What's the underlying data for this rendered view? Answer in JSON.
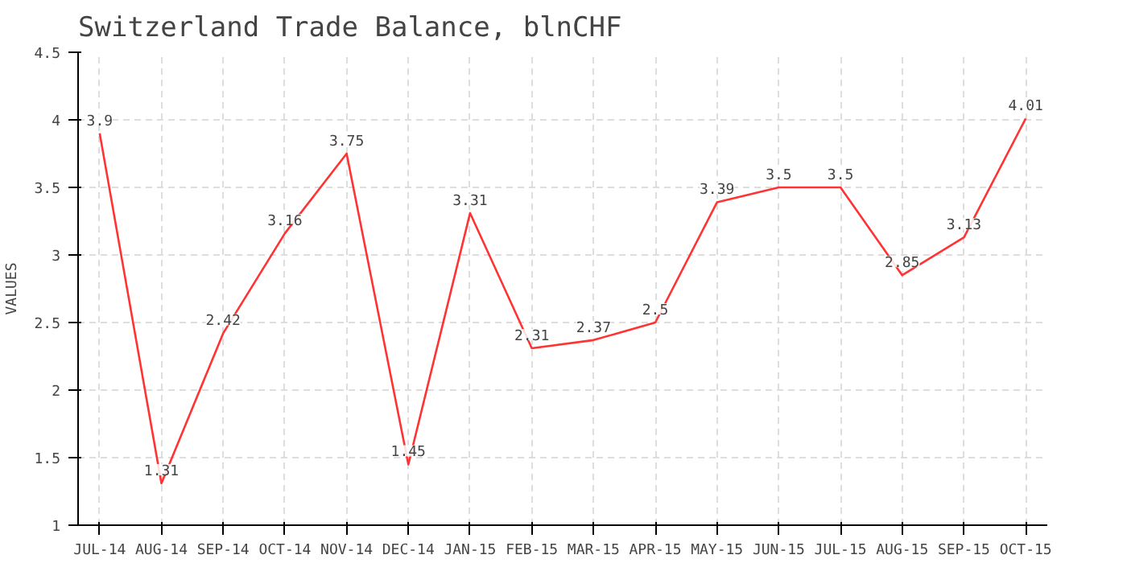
{
  "chart_data": {
    "type": "line",
    "title": "Switzerland Trade Balance, blnCHF",
    "ylabel": "VALUES",
    "categories": [
      "JUL-14",
      "AUG-14",
      "SEP-14",
      "OCT-14",
      "NOV-14",
      "DEC-14",
      "JAN-15",
      "FEB-15",
      "MAR-15",
      "APR-15",
      "MAY-15",
      "JUN-15",
      "JUL-15",
      "AUG-15",
      "SEP-15",
      "OCT-15"
    ],
    "values": [
      3.9,
      1.31,
      2.42,
      3.16,
      3.75,
      1.45,
      3.31,
      2.31,
      2.37,
      2.5,
      3.39,
      3.5,
      3.5,
      2.85,
      3.13,
      4.01
    ],
    "color": "#ff3333",
    "ylim": [
      1,
      4.5
    ],
    "yticks": [
      1,
      1.5,
      2,
      2.5,
      3,
      3.5,
      4,
      4.5
    ],
    "grid": true,
    "data_labels": true
  }
}
